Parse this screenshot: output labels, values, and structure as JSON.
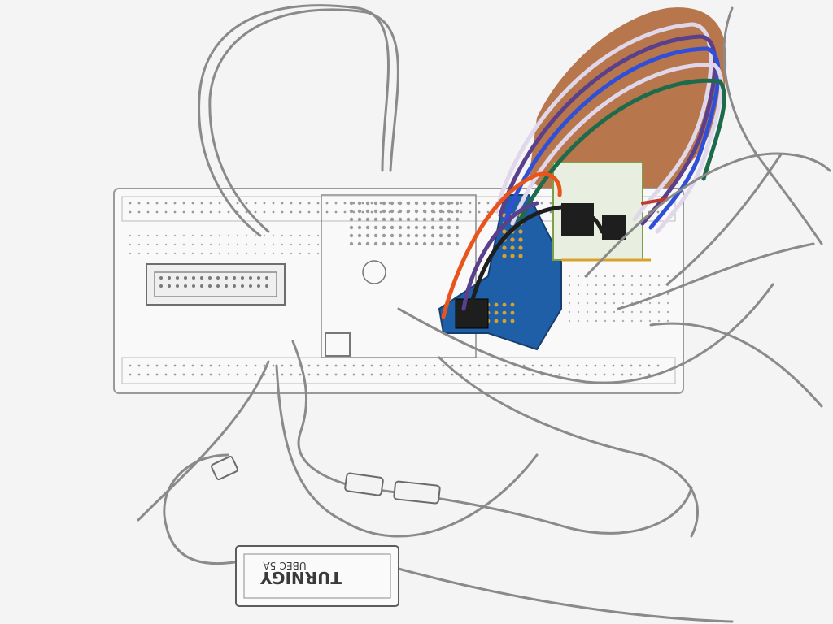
{
  "colors": {
    "background": "#f4f4f4",
    "sketch_line": "#8a8a8a",
    "shield_blue": "#1f5fa8",
    "wood": "#b0683a",
    "wire_orange": "#e8551c",
    "wire_purple": "#5a3f8c",
    "wire_blue": "#2f4fd8",
    "wire_white": "#e0d7ea",
    "wire_red": "#c0392b",
    "wire_green": "#1e6b4c",
    "wire_black": "#1e1e1e",
    "pcb_green": "#7aa04a",
    "solder_gold": "#d8a12a"
  },
  "labels": {
    "brand": "TURNIGY",
    "model": "UBEC-5A"
  },
  "icons": {
    "bec_module": "bec-module-icon",
    "breadboard": "breadboard-icon"
  }
}
